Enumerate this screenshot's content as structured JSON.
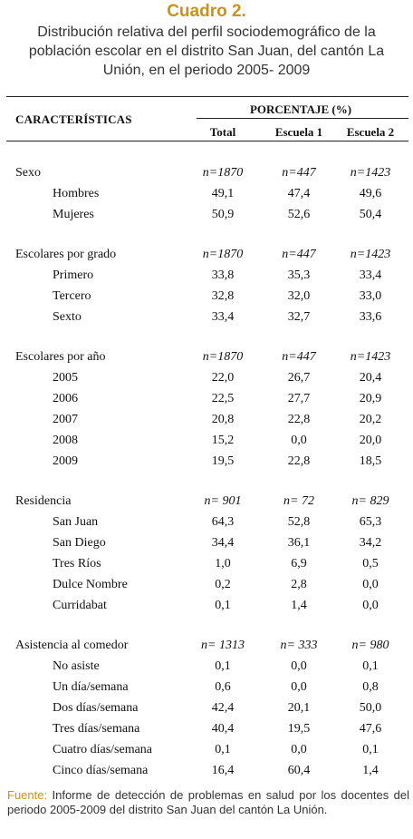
{
  "title": "Cuadro 2.",
  "subtitle": "Distribución relativa del perfil sociodemográfico de la población escolar en el distrito San Juan, del cantón La Unión, en el periodo 2005- 2009",
  "table": {
    "characteristics_header": "CARACTERÍSTICAS",
    "percentage_header": "PORCENTAJE (%)",
    "columns": [
      "Total",
      "Escuela 1",
      "Escuela 2"
    ],
    "sections": [
      {
        "label": "Sexo",
        "n": [
          "n=1870",
          "n=447",
          "n=1423"
        ],
        "rows": [
          {
            "label": "Hombres",
            "values": [
              "49,1",
              "47,4",
              "49,6"
            ]
          },
          {
            "label": "Mujeres",
            "values": [
              "50,9",
              "52,6",
              "50,4"
            ]
          }
        ]
      },
      {
        "label": "Escolares por grado",
        "n": [
          "n=1870",
          "n=447",
          "n=1423"
        ],
        "rows": [
          {
            "label": "Primero",
            "values": [
              "33,8",
              "35,3",
              "33,4"
            ]
          },
          {
            "label": "Tercero",
            "values": [
              "32,8",
              "32,0",
              "33,0"
            ]
          },
          {
            "label": "Sexto",
            "values": [
              "33,4",
              "32,7",
              "33,6"
            ]
          }
        ]
      },
      {
        "label": "Escolares por año",
        "n": [
          "n=1870",
          "n=447",
          "n=1423"
        ],
        "rows": [
          {
            "label": "2005",
            "values": [
              "22,0",
              "26,7",
              "20,4"
            ]
          },
          {
            "label": "2006",
            "values": [
              "22,5",
              "27,7",
              "20,9"
            ]
          },
          {
            "label": "2007",
            "values": [
              "20,8",
              "22,8",
              "20,2"
            ]
          },
          {
            "label": "2008",
            "values": [
              "15,2",
              "0,0",
              "20,0"
            ]
          },
          {
            "label": "2009",
            "values": [
              "19,5",
              "22,8",
              "18,5"
            ]
          }
        ]
      },
      {
        "label": "Residencia",
        "n": [
          "n= 901",
          "n= 72",
          "n= 829"
        ],
        "rows": [
          {
            "label": "San Juan",
            "values": [
              "64,3",
              "52,8",
              "65,3"
            ]
          },
          {
            "label": "San Diego",
            "values": [
              "34,4",
              "36,1",
              "34,2"
            ]
          },
          {
            "label": "Tres Ríos",
            "values": [
              "1,0",
              "6,9",
              "0,5"
            ]
          },
          {
            "label": "Dulce Nombre",
            "values": [
              "0,2",
              "2,8",
              "0,0"
            ]
          },
          {
            "label": "Curridabat",
            "values": [
              "0,1",
              "1,4",
              "0,0"
            ]
          }
        ]
      },
      {
        "label": "Asistencia al comedor",
        "n": [
          "n= 1313",
          "n= 333",
          "n= 980"
        ],
        "rows": [
          {
            "label": "No asiste",
            "values": [
              "0,1",
              "0,0",
              "0,1"
            ]
          },
          {
            "label": "Un día/semana",
            "values": [
              "0,6",
              "0,0",
              "0,8"
            ]
          },
          {
            "label": "Dos días/semana",
            "values": [
              "42,4",
              "20,1",
              "50,0"
            ]
          },
          {
            "label": "Tres días/semana",
            "values": [
              "40,4",
              "19,5",
              "47,6"
            ]
          },
          {
            "label": "Cuatro días/semana",
            "values": [
              "0,1",
              "0,0",
              "0,1"
            ]
          },
          {
            "label": "Cinco días/semana",
            "values": [
              "16,4",
              "60,4",
              "1,4"
            ]
          }
        ]
      }
    ]
  },
  "footer": {
    "source_label": "Fuente:",
    "text": " Informe de detección de problemas en salud por los docentes del periodo 2005-2009 del distrito San Juan del cantón La Unión."
  }
}
